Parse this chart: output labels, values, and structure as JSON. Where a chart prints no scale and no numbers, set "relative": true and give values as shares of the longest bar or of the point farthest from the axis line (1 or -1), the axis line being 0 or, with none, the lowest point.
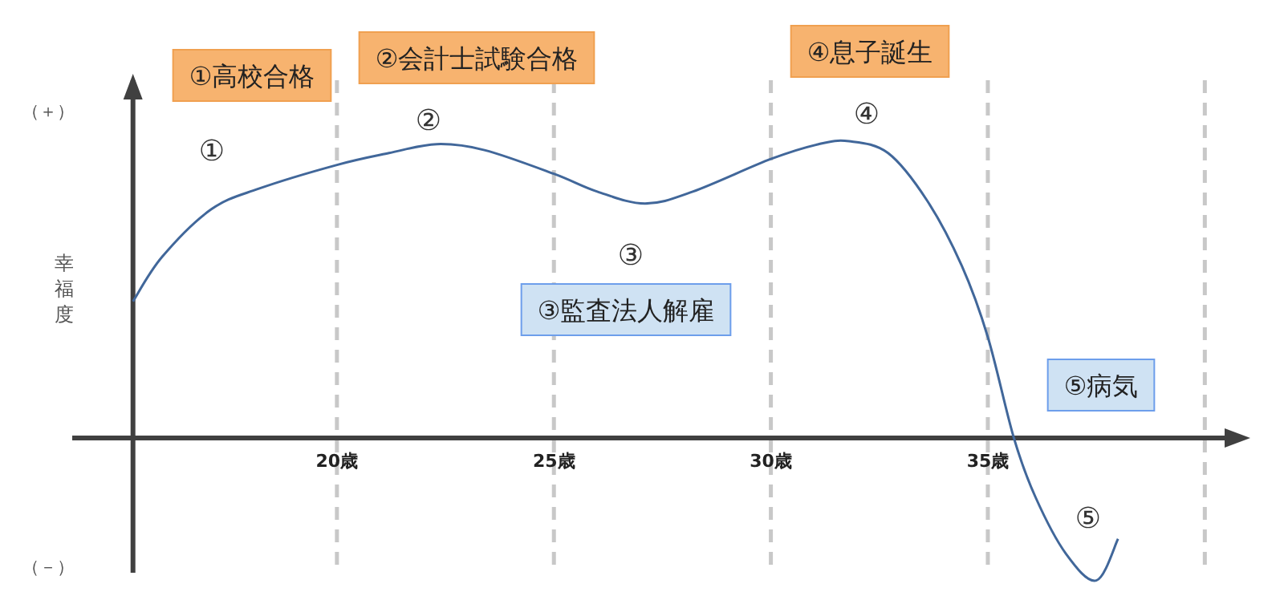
{
  "chart_data": {
    "type": "line",
    "relative": true,
    "ylabel": "幸福度",
    "xlim": [
      13.9,
      40.9
    ],
    "xticks": [
      {
        "value": 20,
        "label": "20歳"
      },
      {
        "value": 25,
        "label": "25歳"
      },
      {
        "value": 30,
        "label": "30歳"
      },
      {
        "value": 35,
        "label": "35歳"
      },
      {
        "value": 40,
        "label": null
      }
    ],
    "grid": "x",
    "ref_lines": [
      {
        "axis": "x",
        "value": 15.3,
        "color": "#404040"
      }
    ],
    "x": [
      15.3,
      15.97,
      17.1,
      18.2,
      20,
      21.2,
      22.3,
      23.4,
      25,
      26,
      27.1,
      28.2,
      30,
      31.1,
      31.8,
      32.7,
      33.6,
      34.4,
      35,
      35.6,
      36.1,
      36.8,
      37.5,
      38
    ],
    "series": [
      {
        "color": "#41679a",
        "values": [
          0.46,
          0.61,
          0.77,
          0.84,
          0.92,
          0.96,
          0.99,
          0.97,
          0.89,
          0.83,
          0.79,
          0.83,
          0.94,
          0.99,
          1.0,
          0.96,
          0.8,
          0.58,
          0.34,
          0,
          -0.2,
          -0.39,
          -0.48,
          -0.34
        ]
      }
    ],
    "annotations": [
      "（＋）",
      "（－）",
      "①高校合格",
      "②会計士試験合格",
      "④息子誕生",
      "③監査法人解雇",
      "⑤病気",
      "①",
      "②",
      "③",
      "④",
      "⑤"
    ]
  }
}
